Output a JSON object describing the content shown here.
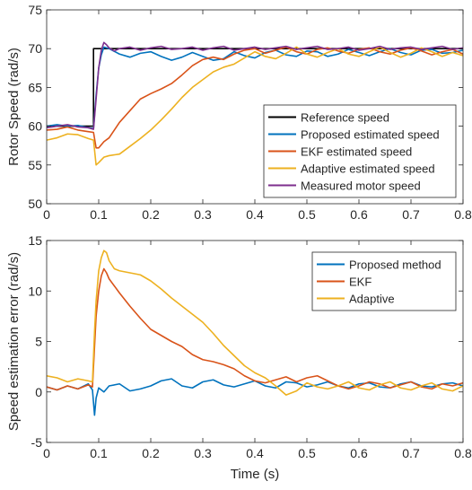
{
  "chart_data": [
    {
      "type": "line",
      "title": "",
      "xlabel": "",
      "ylabel": "Rotor Speed (rad/s)",
      "xlim": [
        0,
        0.8
      ],
      "ylim": [
        50,
        75
      ],
      "xticks": [
        "0",
        "0.1",
        "0.2",
        "0.3",
        "0.4",
        "0.5",
        "0.6",
        "0.7",
        "0.8"
      ],
      "yticks": [
        "50",
        "55",
        "60",
        "65",
        "70",
        "75"
      ],
      "grid": false,
      "legend_position": "center-right",
      "series": [
        {
          "name": "Reference speed",
          "color": "#000000",
          "x": [
            0,
            0.09,
            0.09,
            0.8
          ],
          "y": [
            60,
            60,
            70,
            70
          ]
        },
        {
          "name": "Proposed estimated speed",
          "color": "#0072BD",
          "x": [
            0,
            0.02,
            0.04,
            0.06,
            0.08,
            0.09,
            0.095,
            0.1,
            0.105,
            0.11,
            0.12,
            0.14,
            0.16,
            0.18,
            0.2,
            0.22,
            0.24,
            0.26,
            0.28,
            0.3,
            0.32,
            0.34,
            0.36,
            0.38,
            0.4,
            0.42,
            0.44,
            0.46,
            0.48,
            0.5,
            0.52,
            0.54,
            0.56,
            0.58,
            0.6,
            0.62,
            0.64,
            0.66,
            0.68,
            0.7,
            0.72,
            0.74,
            0.76,
            0.78,
            0.8
          ],
          "y": [
            60.0,
            60.2,
            60.0,
            60.1,
            59.8,
            59.7,
            64.0,
            67.5,
            69.2,
            70.2,
            70.0,
            69.3,
            68.9,
            69.4,
            69.6,
            69.0,
            68.5,
            68.9,
            69.5,
            69.0,
            68.5,
            68.7,
            69.6,
            69.1,
            68.8,
            69.5,
            69.8,
            69.2,
            69.0,
            69.7,
            69.6,
            69.0,
            69.3,
            69.9,
            69.5,
            69.1,
            69.6,
            70.0,
            69.5,
            69.2,
            69.8,
            69.9,
            69.4,
            69.5,
            69.8
          ]
        },
        {
          "name": "EKF estimated speed",
          "color": "#D95319",
          "x": [
            0,
            0.02,
            0.04,
            0.06,
            0.08,
            0.09,
            0.095,
            0.1,
            0.11,
            0.12,
            0.14,
            0.16,
            0.18,
            0.2,
            0.22,
            0.24,
            0.26,
            0.28,
            0.3,
            0.32,
            0.34,
            0.36,
            0.38,
            0.4,
            0.42,
            0.44,
            0.46,
            0.48,
            0.5,
            0.52,
            0.54,
            0.56,
            0.58,
            0.6,
            0.62,
            0.64,
            0.66,
            0.68,
            0.7,
            0.72,
            0.74,
            0.76,
            0.78,
            0.8
          ],
          "y": [
            59.5,
            59.6,
            59.9,
            59.5,
            59.3,
            59.2,
            57.2,
            57.2,
            58.0,
            58.5,
            60.5,
            62.0,
            63.5,
            64.2,
            64.8,
            65.5,
            66.6,
            67.8,
            68.6,
            68.9,
            68.6,
            69.3,
            69.8,
            70.0,
            69.4,
            69.8,
            70.2,
            69.6,
            69.3,
            69.9,
            70.1,
            69.7,
            69.4,
            69.9,
            70.1,
            69.6,
            69.3,
            69.8,
            70.1,
            69.7,
            69.2,
            69.6,
            69.9,
            69.3
          ]
        },
        {
          "name": "Adaptive estimated speed",
          "color": "#EDB120",
          "x": [
            0,
            0.02,
            0.04,
            0.06,
            0.08,
            0.09,
            0.095,
            0.1,
            0.11,
            0.12,
            0.14,
            0.16,
            0.18,
            0.2,
            0.22,
            0.24,
            0.26,
            0.28,
            0.3,
            0.32,
            0.34,
            0.36,
            0.38,
            0.4,
            0.42,
            0.44,
            0.46,
            0.48,
            0.5,
            0.52,
            0.54,
            0.56,
            0.58,
            0.6,
            0.62,
            0.64,
            0.66,
            0.68,
            0.7,
            0.72,
            0.74,
            0.76,
            0.78,
            0.8
          ],
          "y": [
            58.2,
            58.5,
            59.0,
            58.9,
            58.4,
            58.2,
            55.0,
            55.3,
            56.0,
            56.2,
            56.4,
            57.4,
            58.4,
            59.5,
            60.8,
            62.2,
            63.7,
            65.0,
            66.0,
            67.0,
            67.6,
            68.0,
            68.8,
            69.6,
            69.0,
            68.7,
            69.4,
            70.2,
            69.3,
            68.9,
            69.5,
            70.0,
            69.3,
            69.0,
            69.6,
            70.2,
            69.5,
            68.9,
            69.4,
            70.1,
            69.6,
            69.0,
            69.5,
            69.1
          ]
        },
        {
          "name": "Measured motor speed",
          "color": "#7E2F8E",
          "x": [
            0,
            0.02,
            0.04,
            0.06,
            0.08,
            0.09,
            0.095,
            0.1,
            0.105,
            0.11,
            0.115,
            0.12,
            0.13,
            0.14,
            0.16,
            0.18,
            0.2,
            0.22,
            0.24,
            0.26,
            0.28,
            0.3,
            0.32,
            0.34,
            0.36,
            0.38,
            0.4,
            0.42,
            0.44,
            0.46,
            0.48,
            0.5,
            0.52,
            0.54,
            0.56,
            0.58,
            0.6,
            0.62,
            0.64,
            0.66,
            0.68,
            0.7,
            0.72,
            0.74,
            0.76,
            0.78,
            0.8
          ],
          "y": [
            59.8,
            60.0,
            60.2,
            59.9,
            59.8,
            59.6,
            63.5,
            67.5,
            69.8,
            70.8,
            70.5,
            70.1,
            69.7,
            70.0,
            70.2,
            69.8,
            70.1,
            70.3,
            69.9,
            70.0,
            70.2,
            69.8,
            70.1,
            70.3,
            69.8,
            70.0,
            70.2,
            69.9,
            70.1,
            70.3,
            69.9,
            70.1,
            70.3,
            69.9,
            70.0,
            70.2,
            69.8,
            70.0,
            70.3,
            69.9,
            70.1,
            70.2,
            69.9,
            70.1,
            70.3,
            69.9,
            70.1
          ]
        }
      ]
    },
    {
      "type": "line",
      "title": "",
      "xlabel": "Time (s)",
      "ylabel": "Speed estimation error (rad/s)",
      "xlim": [
        0,
        0.8
      ],
      "ylim": [
        -5,
        15
      ],
      "xticks": [
        "0",
        "0.1",
        "0.2",
        "0.3",
        "0.4",
        "0.5",
        "0.6",
        "0.7",
        "0.8"
      ],
      "yticks": [
        "-5",
        "0",
        "5",
        "10",
        "15"
      ],
      "grid": false,
      "legend_position": "top-right",
      "series": [
        {
          "name": "Proposed method",
          "color": "#0072BD",
          "x": [
            0,
            0.02,
            0.04,
            0.06,
            0.08,
            0.088,
            0.092,
            0.095,
            0.1,
            0.11,
            0.12,
            0.14,
            0.16,
            0.18,
            0.2,
            0.22,
            0.24,
            0.26,
            0.28,
            0.3,
            0.32,
            0.34,
            0.36,
            0.38,
            0.4,
            0.42,
            0.44,
            0.46,
            0.48,
            0.5,
            0.52,
            0.54,
            0.56,
            0.58,
            0.6,
            0.62,
            0.64,
            0.66,
            0.68,
            0.7,
            0.72,
            0.74,
            0.76,
            0.78,
            0.8
          ],
          "y": [
            0.5,
            0.2,
            0.6,
            0.3,
            0.8,
            0.2,
            -2.3,
            -0.6,
            0.4,
            0.0,
            0.6,
            0.8,
            0.1,
            0.3,
            0.6,
            1.1,
            1.3,
            0.6,
            0.4,
            1.0,
            1.2,
            0.7,
            0.5,
            0.8,
            1.1,
            0.6,
            0.4,
            1.0,
            0.9,
            0.5,
            0.7,
            1.0,
            0.6,
            0.4,
            0.8,
            0.9,
            0.5,
            0.4,
            0.8,
            1.0,
            0.6,
            0.5,
            0.8,
            0.9,
            0.6
          ]
        },
        {
          "name": "EKF",
          "color": "#D95319",
          "x": [
            0,
            0.02,
            0.04,
            0.06,
            0.08,
            0.088,
            0.092,
            0.095,
            0.1,
            0.105,
            0.11,
            0.115,
            0.12,
            0.13,
            0.14,
            0.16,
            0.18,
            0.2,
            0.22,
            0.24,
            0.26,
            0.28,
            0.3,
            0.32,
            0.34,
            0.36,
            0.38,
            0.4,
            0.42,
            0.44,
            0.46,
            0.48,
            0.5,
            0.52,
            0.54,
            0.56,
            0.58,
            0.6,
            0.62,
            0.64,
            0.66,
            0.68,
            0.7,
            0.72,
            0.74,
            0.76,
            0.78,
            0.8
          ],
          "y": [
            0.5,
            0.2,
            0.6,
            0.3,
            0.7,
            0.5,
            4.5,
            7.5,
            10.0,
            11.5,
            12.2,
            11.8,
            11.2,
            10.5,
            9.8,
            8.5,
            7.3,
            6.2,
            5.6,
            5.0,
            4.5,
            3.7,
            3.2,
            3.0,
            2.7,
            2.3,
            1.6,
            1.1,
            0.9,
            1.2,
            1.5,
            1.0,
            1.4,
            1.6,
            1.1,
            0.6,
            0.3,
            0.6,
            1.0,
            0.8,
            0.4,
            0.7,
            1.0,
            0.5,
            0.3,
            0.8,
            0.6,
            0.9
          ]
        },
        {
          "name": "Adaptive",
          "color": "#EDB120",
          "x": [
            0,
            0.02,
            0.04,
            0.06,
            0.08,
            0.088,
            0.092,
            0.095,
            0.1,
            0.105,
            0.11,
            0.115,
            0.12,
            0.13,
            0.14,
            0.16,
            0.18,
            0.2,
            0.22,
            0.24,
            0.26,
            0.28,
            0.3,
            0.32,
            0.34,
            0.36,
            0.38,
            0.4,
            0.42,
            0.44,
            0.46,
            0.48,
            0.5,
            0.52,
            0.54,
            0.56,
            0.58,
            0.6,
            0.62,
            0.64,
            0.66,
            0.68,
            0.7,
            0.72,
            0.74,
            0.76,
            0.78,
            0.8
          ],
          "y": [
            1.6,
            1.4,
            1.0,
            1.3,
            1.1,
            1.0,
            6.0,
            9.0,
            12.0,
            13.3,
            14.0,
            13.8,
            13.0,
            12.2,
            12.0,
            11.8,
            11.6,
            11.0,
            10.2,
            9.3,
            8.5,
            7.7,
            6.9,
            5.8,
            4.6,
            3.6,
            2.6,
            1.9,
            1.4,
            0.6,
            -0.3,
            0.1,
            0.9,
            0.5,
            0.3,
            0.6,
            1.0,
            0.4,
            0.2,
            0.7,
            1.0,
            0.4,
            0.2,
            0.6,
            0.9,
            0.3,
            0.1,
            0.6
          ]
        }
      ]
    }
  ]
}
